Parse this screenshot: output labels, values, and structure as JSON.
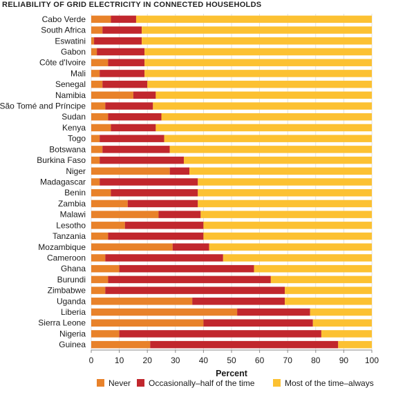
{
  "chart_data": {
    "type": "bar",
    "orientation": "horizontal",
    "stacked": true,
    "title": "RELIABILITY OF GRID ELECTRICITY IN CONNECTED HOUSEHOLDS",
    "xlabel": "Percent",
    "ylabel": "",
    "xlim": [
      0,
      100
    ],
    "xticks": [
      "0",
      "10",
      "20",
      "30",
      "40",
      "50",
      "60",
      "70",
      "80",
      "90",
      "100"
    ],
    "grid": true,
    "legend_position": "bottom",
    "categories": [
      "Cabo Verde",
      "South Africa",
      "Eswatini",
      "Gabon",
      "Côte d'Ivoire",
      "Mali",
      "Senegal",
      "Namibia",
      "São Tomé and Príncipe",
      "Sudan",
      "Kenya",
      "Togo",
      "Botswana",
      "Burkina Faso",
      "Niger",
      "Madagascar",
      "Benin",
      "Zambia",
      "Malawi",
      "Lesotho",
      "Tanzania",
      "Mozambique",
      "Cameroon",
      "Ghana",
      "Burundi",
      "Zimbabwe",
      "Uganda",
      "Liberia",
      "Sierra Leone",
      "Nigeria",
      "Guinea"
    ],
    "series": [
      {
        "name": "Never",
        "color": "#e8822a",
        "values": [
          7,
          4,
          1,
          2,
          6,
          3,
          4,
          15,
          5,
          6,
          7,
          3,
          4,
          3,
          28,
          3,
          7,
          13,
          24,
          12,
          6,
          29,
          5,
          10,
          6,
          5,
          36,
          52,
          40,
          10,
          21
        ]
      },
      {
        "name": "Occasionally–half of the time",
        "color": "#c1272d",
        "values": [
          9,
          14,
          17,
          17,
          13,
          16,
          16,
          8,
          17,
          19,
          16,
          23,
          24,
          30,
          7,
          35,
          31,
          25,
          15,
          28,
          34,
          13,
          42,
          48,
          58,
          64,
          33,
          26,
          39,
          72,
          67
        ]
      },
      {
        "name": "Most of the time–always",
        "color": "#fcc132",
        "values": [
          84,
          82,
          82,
          81,
          81,
          81,
          80,
          77,
          78,
          75,
          77,
          74,
          72,
          67,
          65,
          62,
          62,
          62,
          61,
          60,
          60,
          58,
          53,
          42,
          36,
          31,
          31,
          22,
          21,
          18,
          12
        ]
      }
    ]
  }
}
